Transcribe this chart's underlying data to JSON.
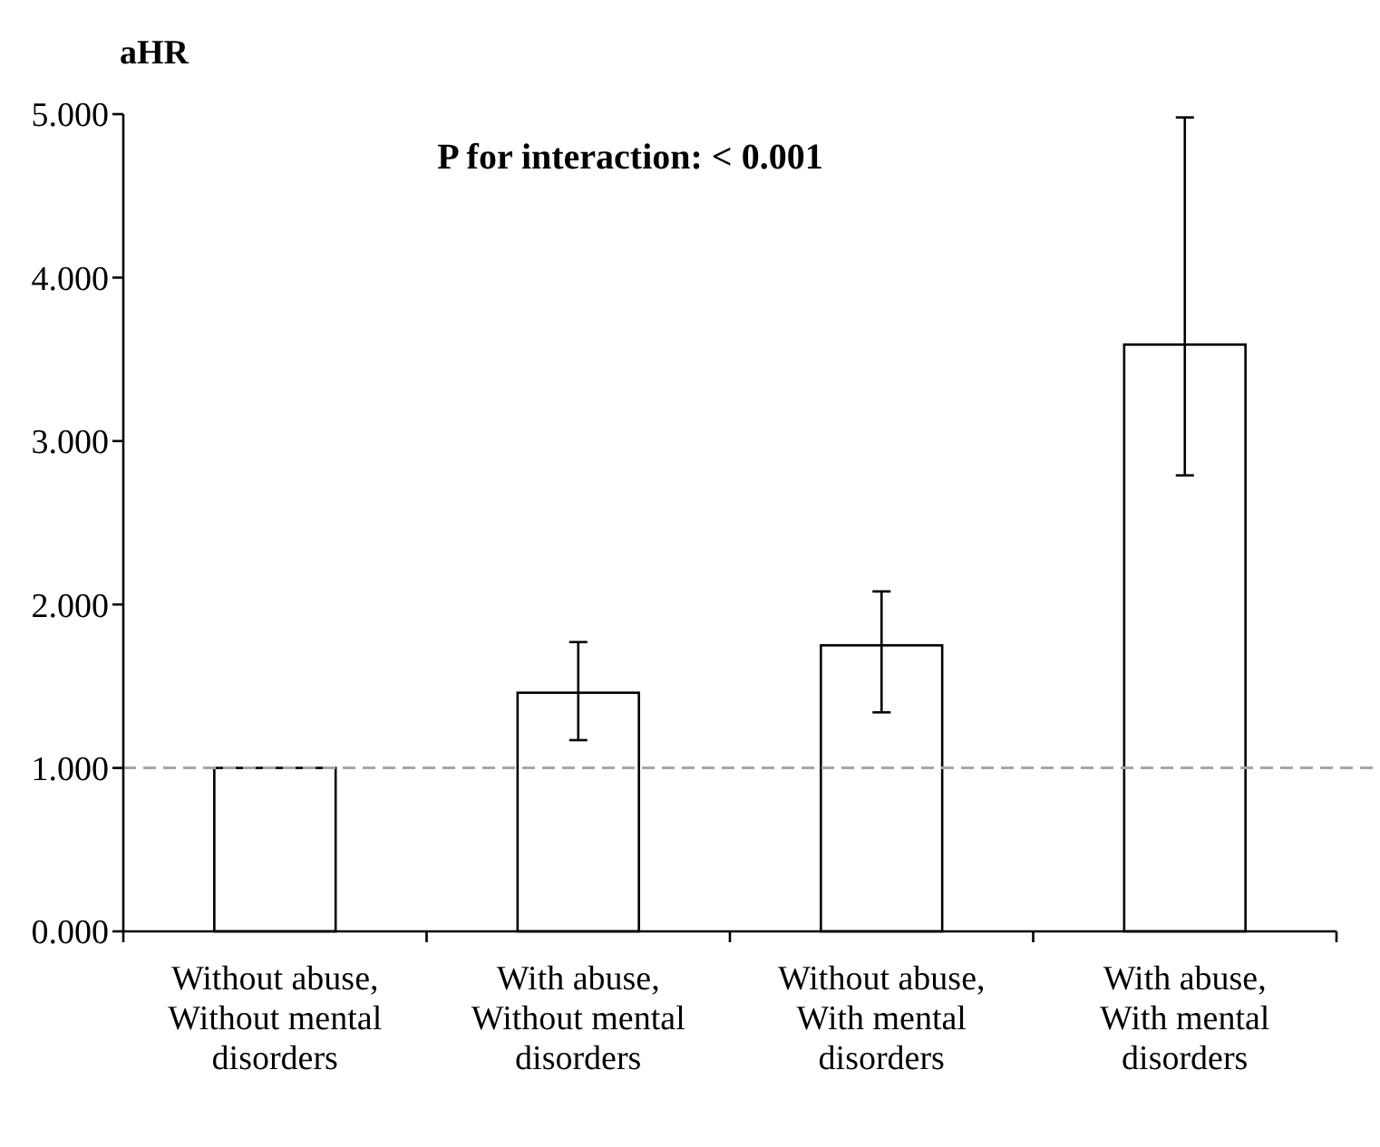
{
  "chart_data": {
    "type": "bar",
    "ylabel": "aHR",
    "categories": [
      "Without abuse, Without mental disorders",
      "With abuse, Without mental disorders",
      "Without abuse, With mental disorders",
      "With abuse, With mental disorders"
    ],
    "values": [
      1.0,
      1.46,
      1.75,
      3.59
    ],
    "errors": [
      null,
      [
        1.17,
        1.77
      ],
      [
        1.34,
        2.08
      ],
      [
        2.79,
        4.98
      ]
    ],
    "color": "#ffffff",
    "ylim": [
      0,
      5
    ],
    "yticks": [
      {
        "value": 0,
        "label": "0.000"
      },
      {
        "value": 1,
        "label": "1.000"
      },
      {
        "value": 2,
        "label": "2.000"
      },
      {
        "value": 3,
        "label": "3.000"
      },
      {
        "value": 4,
        "label": "4.000"
      },
      {
        "value": 5,
        "label": "5.000"
      }
    ],
    "ref_lines": [
      {
        "axis": "y",
        "value": 1,
        "color": "#a6a6a6",
        "line_style": "dashed"
      }
    ],
    "annotations": [
      "P for interaction: < 0.001"
    ],
    "grid": false
  }
}
